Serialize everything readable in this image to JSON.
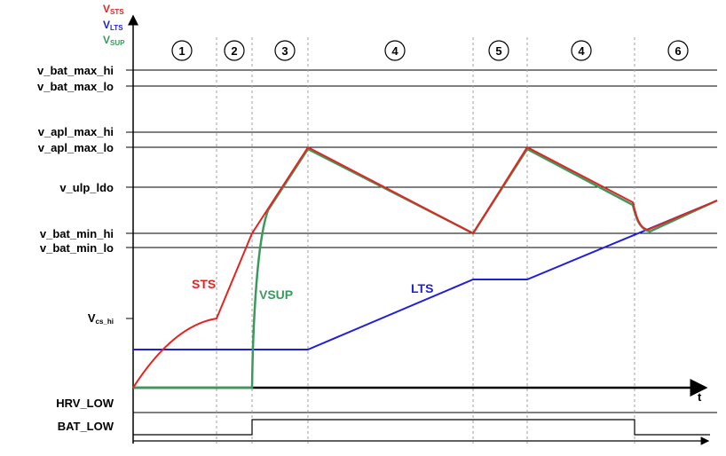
{
  "y_axis_labels": [
    {
      "base": "V",
      "sub": "STS",
      "color": "#e52421"
    },
    {
      "base": "V",
      "sub": "LTS",
      "color": "#1f1fd6"
    },
    {
      "base": "V",
      "sub": "SUP",
      "color": "#3a9a5c"
    }
  ],
  "x_axis_label": "t",
  "levels": [
    {
      "label": "v_bat_max_hi"
    },
    {
      "label": "v_bat_max_lo"
    },
    {
      "label": "v_apl_max_hi"
    },
    {
      "label": "v_apl_max_lo"
    },
    {
      "label": "v_ulp_ldo"
    },
    {
      "label": "v_bat_min_hi"
    },
    {
      "label": "v_bat_min_lo"
    },
    {
      "label": "V",
      "sub": "cs_hi"
    }
  ],
  "phases": [
    "1",
    "2",
    "3",
    "4",
    "5",
    "4",
    "6"
  ],
  "curve_labels": {
    "sts": "STS",
    "vsup": "VSUP",
    "lts": "LTS"
  },
  "signals": {
    "hrv_low": "HRV_LOW",
    "bat_low": "BAT_LOW"
  },
  "colors": {
    "sts": "#e52421",
    "lts": "#1f1fd6",
    "vsup": "#3a9a5c",
    "grid": "#000000",
    "dash": "#999999"
  }
}
